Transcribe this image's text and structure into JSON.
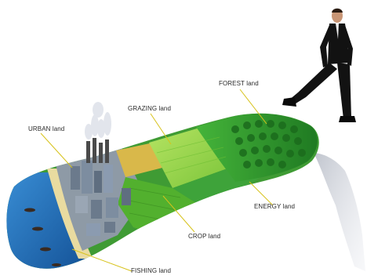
{
  "labels": {
    "forest": "FOREST land",
    "grazing": "GRAZING land",
    "urban": "URBAN land",
    "energy": "ENERGY land",
    "crop": "CROP land",
    "fishing": "FISHING land"
  },
  "colors": {
    "ocean": "#1f6fb8",
    "beach": "#e9dba0",
    "urban": "#8e9aa6",
    "grazing": "#9fd84a",
    "crop": "#52b02e",
    "forest": "#2f9a2a",
    "energy": "#3ea33a",
    "wheat": "#d9b84a",
    "leader_line": "#d7c21a",
    "suit": "#121212"
  }
}
